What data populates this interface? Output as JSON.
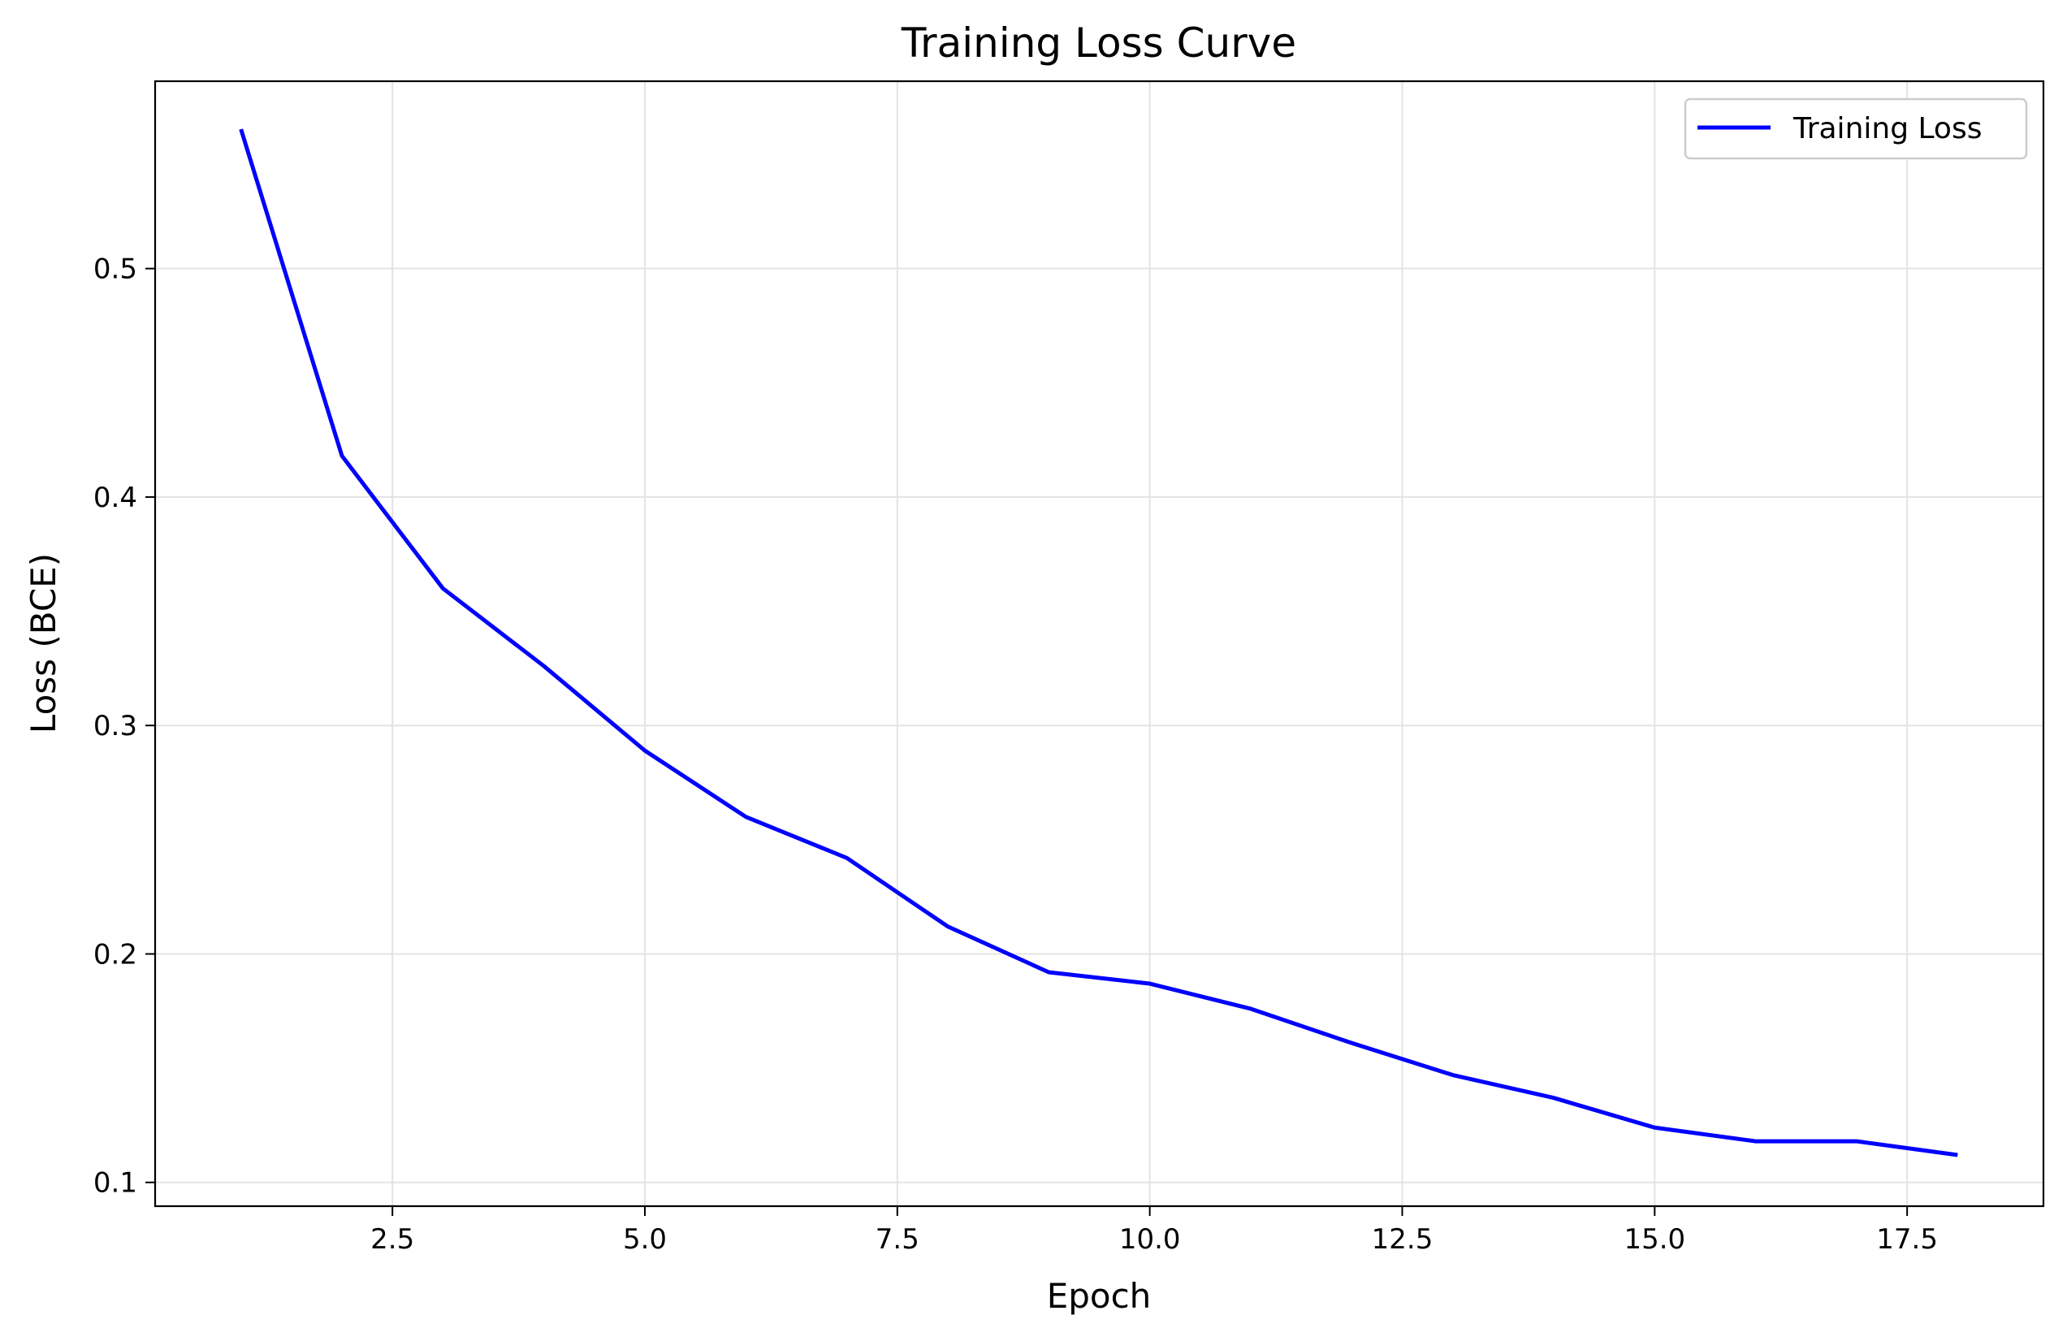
{
  "chart_data": {
    "type": "line",
    "title": "Training Loss Curve",
    "xlabel": "Epoch",
    "ylabel": "Loss (BCE)",
    "xlim": [
      0.15,
      18.85
    ],
    "ylim": [
      0.0896,
      0.582
    ],
    "xticks": [
      2.5,
      5.0,
      7.5,
      10.0,
      12.5,
      15.0,
      17.5
    ],
    "xtick_labels": [
      "2.5",
      "5.0",
      "7.5",
      "10.0",
      "12.5",
      "15.0",
      "17.5"
    ],
    "yticks": [
      0.1,
      0.2,
      0.3,
      0.4,
      0.5
    ],
    "ytick_labels": [
      "0.1",
      "0.2",
      "0.3",
      "0.4",
      "0.5"
    ],
    "grid": true,
    "legend_position": "top-right",
    "series": [
      {
        "name": "Training Loss",
        "color": "#0000ff",
        "x": [
          1,
          2,
          3,
          4,
          5,
          6,
          7,
          8,
          9,
          10,
          11,
          12,
          13,
          14,
          15,
          16,
          17,
          18
        ],
        "y": [
          0.561,
          0.418,
          0.36,
          0.326,
          0.289,
          0.26,
          0.242,
          0.212,
          0.192,
          0.187,
          0.176,
          0.161,
          0.147,
          0.137,
          0.124,
          0.118,
          0.118,
          0.112
        ]
      }
    ]
  }
}
